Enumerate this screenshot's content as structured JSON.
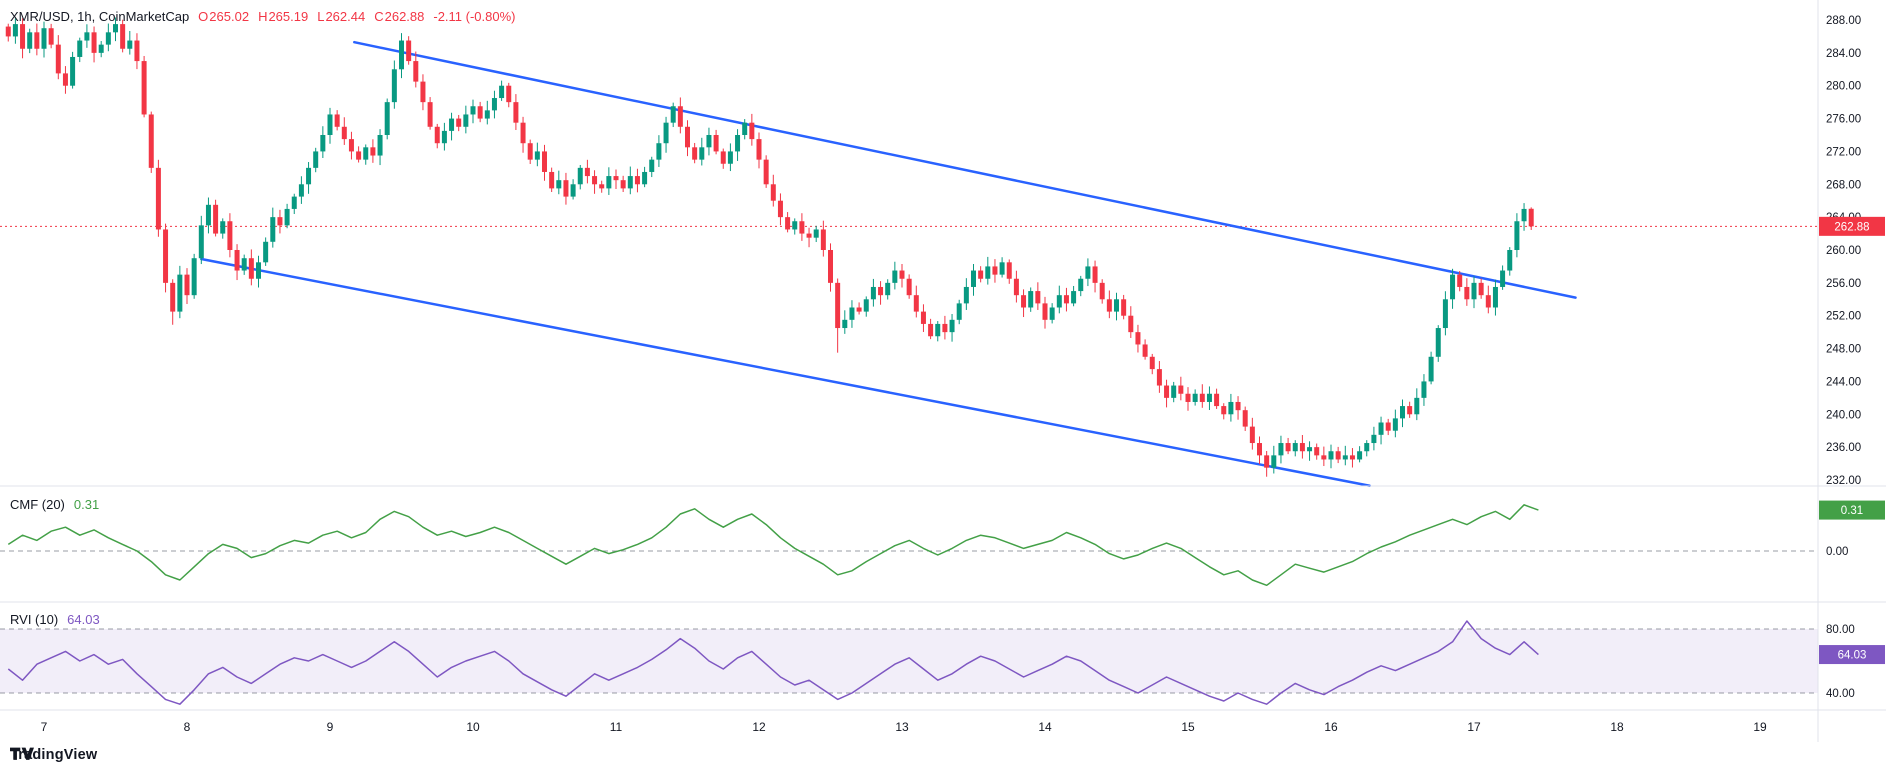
{
  "header": {
    "symbol": "XMR/USD, 1h, CoinMarketCap",
    "ohlc": {
      "o_label": "O",
      "o": "265.02",
      "h_label": "H",
      "h": "265.19",
      "l_label": "L",
      "l": "262.44",
      "c_label": "C",
      "c": "262.88",
      "change": "-2.11 (-0.80%)"
    }
  },
  "indicators": {
    "cmf": {
      "label": "CMF (20)",
      "value": "0.31"
    },
    "rvi": {
      "label": "RVI (10)",
      "value": "64.03"
    }
  },
  "axes": {
    "price_labels": [
      "288.00",
      "284.00",
      "280.00",
      "276.00",
      "272.00",
      "268.00",
      "264.00",
      "260.00",
      "256.00",
      "252.00",
      "248.00",
      "244.00",
      "240.00",
      "236.00",
      "232.00"
    ],
    "time_labels": [
      "7",
      "8",
      "9",
      "10",
      "11",
      "12",
      "13",
      "14",
      "15",
      "16",
      "17",
      "18",
      "19"
    ],
    "cmf_labels": [
      "0.00"
    ],
    "rvi_labels": [
      "80.00",
      "40.00"
    ]
  },
  "badges": {
    "price": "262.88",
    "cmf": "0.31",
    "rvi": "64.03"
  },
  "footer": {
    "brand": "TradingView"
  },
  "colors": {
    "up": "#089981",
    "down": "#f23645",
    "trendline": "#2962ff",
    "cmf_line": "#43a047",
    "rvi_line": "#7e57c2",
    "rvi_band": "rgba(126,87,194,0.10)",
    "level_line": "#787b86",
    "axis_text": "#131722",
    "separator": "#e0e3eb"
  },
  "chart_data": {
    "type": "candlestick",
    "symbol": "XMR/USD",
    "interval": "1h",
    "source": "CoinMarketCap",
    "last_candle": {
      "open": 265.02,
      "high": 265.19,
      "low": 262.44,
      "close": 262.88,
      "change": -2.11,
      "change_pct": -0.8
    },
    "last_price_line": 262.88,
    "price_axis": {
      "min": 232,
      "max": 288,
      "tick_step": 4
    },
    "time_axis": {
      "labels": [
        7,
        8,
        9,
        10,
        11,
        12,
        13,
        14,
        15,
        16,
        17,
        18,
        19
      ],
      "unit": "day of month"
    },
    "candles": {
      "start_day": 6.75,
      "step_day": 0.05,
      "wick": 0.7,
      "closes": [
        286,
        287.5,
        284.5,
        286.5,
        284.5,
        287,
        285,
        281.5,
        280,
        283.5,
        285.5,
        286.5,
        284,
        285,
        286.5,
        287.5,
        284.5,
        285.5,
        283,
        276.5,
        270,
        262.5,
        256,
        252.5,
        257,
        254.5,
        259,
        263,
        265.5,
        262,
        263.5,
        260,
        257.5,
        259,
        256.5,
        258.5,
        261,
        264,
        263,
        265,
        266.5,
        268,
        270,
        272,
        274,
        276.5,
        275,
        273.5,
        272,
        271,
        272.5,
        271.5,
        274,
        278,
        282,
        285.5,
        283,
        280.5,
        278,
        275,
        273,
        274.5,
        276,
        275,
        276.5,
        277.5,
        276,
        277,
        278.5,
        280,
        278,
        275.5,
        273,
        271,
        272,
        269.5,
        267.5,
        268.5,
        266.5,
        268,
        270,
        269,
        268,
        267.5,
        269,
        268.5,
        267.5,
        269,
        268,
        269.5,
        271,
        273,
        275.5,
        277.5,
        275,
        272.5,
        271,
        272.5,
        274,
        272,
        270.5,
        272,
        274,
        275.5,
        273.5,
        271,
        268,
        266,
        264,
        262.5,
        263.5,
        262,
        261.5,
        262.5,
        260,
        256,
        250.5,
        251.5,
        253,
        252.5,
        254,
        255.5,
        254.5,
        256,
        257.5,
        256.5,
        254.5,
        252.5,
        251,
        249.5,
        251,
        250,
        251.5,
        253.5,
        255.5,
        257.5,
        256.5,
        258,
        257,
        258.5,
        256.5,
        254.5,
        253,
        255,
        253.5,
        251.5,
        253,
        254.5,
        253.5,
        255,
        256.5,
        258,
        256,
        254,
        252.5,
        254,
        252,
        250,
        248.5,
        247,
        245.5,
        243.5,
        242,
        243.5,
        242.5,
        241.5,
        242.5,
        241.5,
        242.5,
        241,
        240,
        241.5,
        240.5,
        238.5,
        236.5,
        235,
        233.5,
        235,
        236.5,
        235.5,
        236.5,
        235.5,
        236,
        235,
        234.5,
        235.5,
        234.5,
        235,
        234.5,
        235.5,
        236.5,
        237.5,
        239,
        238,
        239.5,
        241,
        240,
        242,
        244,
        247,
        250.5,
        254,
        257,
        255.5,
        254,
        256,
        254.5,
        253,
        255.5,
        257.5,
        260,
        263.5,
        265,
        262.88
      ],
      "wick_high_overrides": {
        "1": 288.2,
        "55": 286.4
      },
      "wick_low_overrides": {
        "23": 250.9,
        "116": 247.5,
        "176": 232.4
      }
    },
    "trendlines": [
      {
        "name": "upper-channel-line",
        "from_day": 9.17,
        "from_price": 285.3,
        "to_day": 17.71,
        "to_price": 254.2
      },
      {
        "name": "lower-channel-line",
        "from_day": 8.1,
        "from_price": 258.9,
        "to_day": 16.27,
        "to_price": 231.3
      }
    ],
    "cmf": {
      "name": "Chaikin Money Flow",
      "length": 20,
      "current": 0.31,
      "zero_line": 0,
      "start_day": 6.75,
      "step_day": 0.1,
      "values": [
        0.05,
        0.12,
        0.08,
        0.15,
        0.18,
        0.12,
        0.16,
        0.1,
        0.05,
        0.0,
        -0.08,
        -0.18,
        -0.22,
        -0.12,
        -0.02,
        0.05,
        0.02,
        -0.05,
        -0.02,
        0.04,
        0.08,
        0.06,
        0.12,
        0.15,
        0.1,
        0.14,
        0.24,
        0.3,
        0.26,
        0.18,
        0.12,
        0.15,
        0.11,
        0.14,
        0.18,
        0.14,
        0.08,
        0.02,
        -0.04,
        -0.1,
        -0.04,
        0.02,
        -0.02,
        0.01,
        0.05,
        0.1,
        0.18,
        0.28,
        0.32,
        0.24,
        0.18,
        0.24,
        0.28,
        0.2,
        0.1,
        0.02,
        -0.04,
        -0.1,
        -0.18,
        -0.15,
        -0.08,
        -0.02,
        0.04,
        0.08,
        0.02,
        -0.03,
        0.02,
        0.08,
        0.12,
        0.1,
        0.06,
        0.02,
        0.05,
        0.08,
        0.14,
        0.1,
        0.05,
        -0.02,
        -0.06,
        -0.03,
        0.02,
        0.06,
        0.02,
        -0.05,
        -0.12,
        -0.18,
        -0.15,
        -0.22,
        -0.26,
        -0.18,
        -0.1,
        -0.13,
        -0.16,
        -0.12,
        -0.08,
        -0.02,
        0.03,
        0.07,
        0.12,
        0.16,
        0.2,
        0.24,
        0.2,
        0.26,
        0.3,
        0.24,
        0.35,
        0.31
      ]
    },
    "rvi": {
      "name": "Relative Volatility Index",
      "length": 10,
      "current": 64.03,
      "upper_band": 80,
      "lower_band": 40,
      "start_day": 6.75,
      "step_day": 0.1,
      "values": [
        55,
        48,
        58,
        62,
        66,
        60,
        64,
        58,
        61,
        52,
        44,
        36,
        33,
        42,
        52,
        56,
        50,
        46,
        52,
        58,
        62,
        60,
        64,
        60,
        56,
        60,
        66,
        72,
        66,
        58,
        50,
        56,
        60,
        63,
        66,
        60,
        52,
        47,
        42,
        38,
        45,
        52,
        48,
        52,
        56,
        61,
        67,
        74,
        68,
        60,
        55,
        62,
        66,
        58,
        50,
        45,
        48,
        42,
        36,
        40,
        46,
        52,
        58,
        62,
        55,
        48,
        52,
        58,
        63,
        60,
        55,
        50,
        54,
        58,
        63,
        60,
        54,
        48,
        44,
        40,
        45,
        50,
        46,
        42,
        38,
        35,
        40,
        36,
        33,
        40,
        46,
        42,
        39,
        44,
        48,
        53,
        57,
        54,
        58,
        62,
        66,
        72,
        85,
        74,
        68,
        64,
        72,
        64.03
      ]
    }
  }
}
